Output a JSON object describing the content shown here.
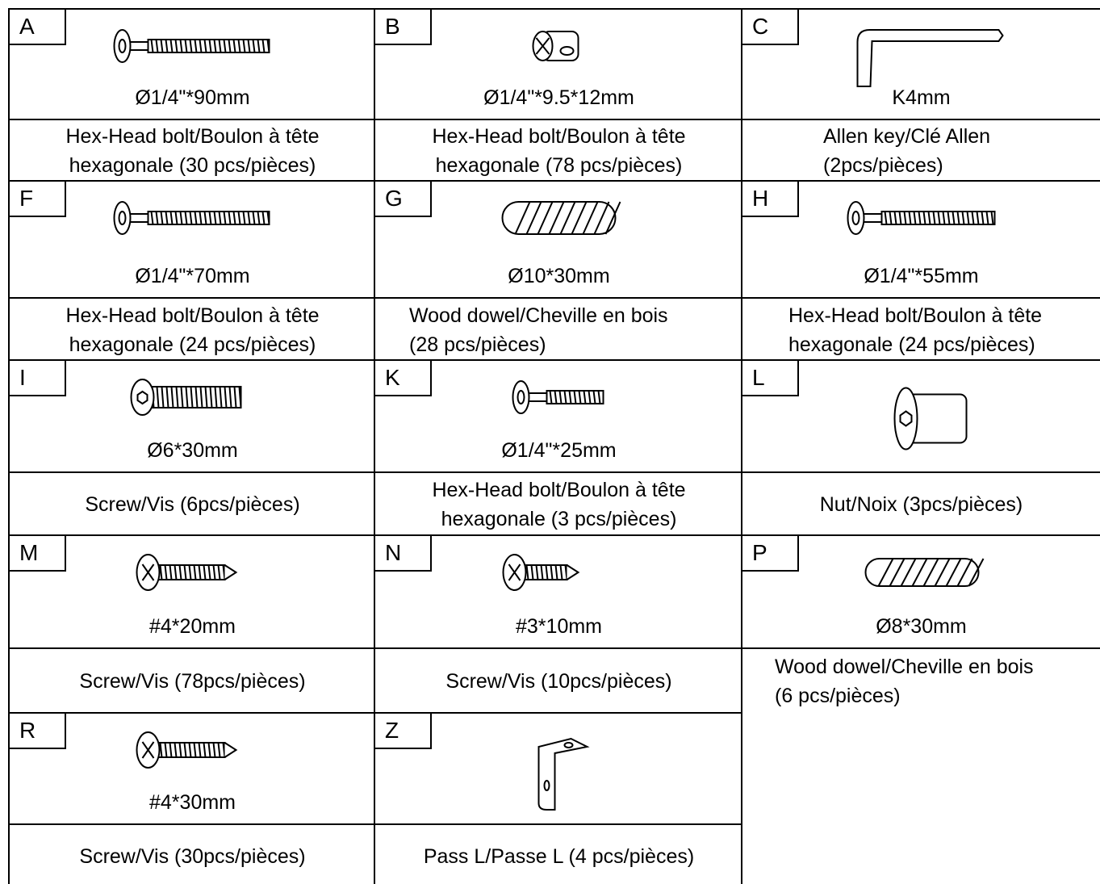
{
  "parts": [
    {
      "letter": "A",
      "size": "Ø1/4\"*90mm",
      "description": [
        "Hex-Head bolt/Boulon à tête",
        "hexagonale (30 pcs/pièces)"
      ]
    },
    {
      "letter": "B",
      "size": "Ø1/4\"*9.5*12mm",
      "description": [
        "Hex-Head bolt/Boulon à tête",
        "hexagonale (78 pcs/pièces)"
      ]
    },
    {
      "letter": "C",
      "size": "K4mm",
      "description": [
        "Allen key/Clé Allen",
        "(2pcs/pièces)"
      ]
    },
    {
      "letter": "F",
      "size": "Ø1/4\"*70mm",
      "description": [
        "Hex-Head bolt/Boulon à tête",
        "hexagonale (24 pcs/pièces)"
      ]
    },
    {
      "letter": "G",
      "size": "Ø10*30mm",
      "description": [
        "Wood dowel/Cheville en bois",
        "(28 pcs/pièces)"
      ]
    },
    {
      "letter": "H",
      "size": "Ø1/4\"*55mm",
      "description": [
        "Hex-Head bolt/Boulon à tête",
        "hexagonale (24 pcs/pièces)"
      ]
    },
    {
      "letter": "I",
      "size": "Ø6*30mm",
      "description": [
        "Screw/Vis (6pcs/pièces)"
      ]
    },
    {
      "letter": "K",
      "size": "Ø1/4\"*25mm",
      "description": [
        "Hex-Head bolt/Boulon à tête",
        "hexagonale (3 pcs/pièces)"
      ]
    },
    {
      "letter": "L",
      "size": "",
      "description": [
        "Nut/Noix (3pcs/pièces)"
      ]
    },
    {
      "letter": "M",
      "size": "#4*20mm",
      "description": [
        "Screw/Vis (78pcs/pièces)"
      ]
    },
    {
      "letter": "N",
      "size": "#3*10mm",
      "description": [
        "Screw/Vis (10pcs/pièces)"
      ]
    },
    {
      "letter": "P",
      "size": "Ø8*30mm",
      "description": [
        "Wood dowel/Cheville en bois",
        "(6 pcs/pièces)"
      ]
    },
    {
      "letter": "R",
      "size": "#4*30mm",
      "description": [
        "Screw/Vis (30pcs/pièces)"
      ]
    },
    {
      "letter": "Z",
      "size": "",
      "description": [
        "Pass L/Passe L (4 pcs/pièces)"
      ]
    }
  ]
}
